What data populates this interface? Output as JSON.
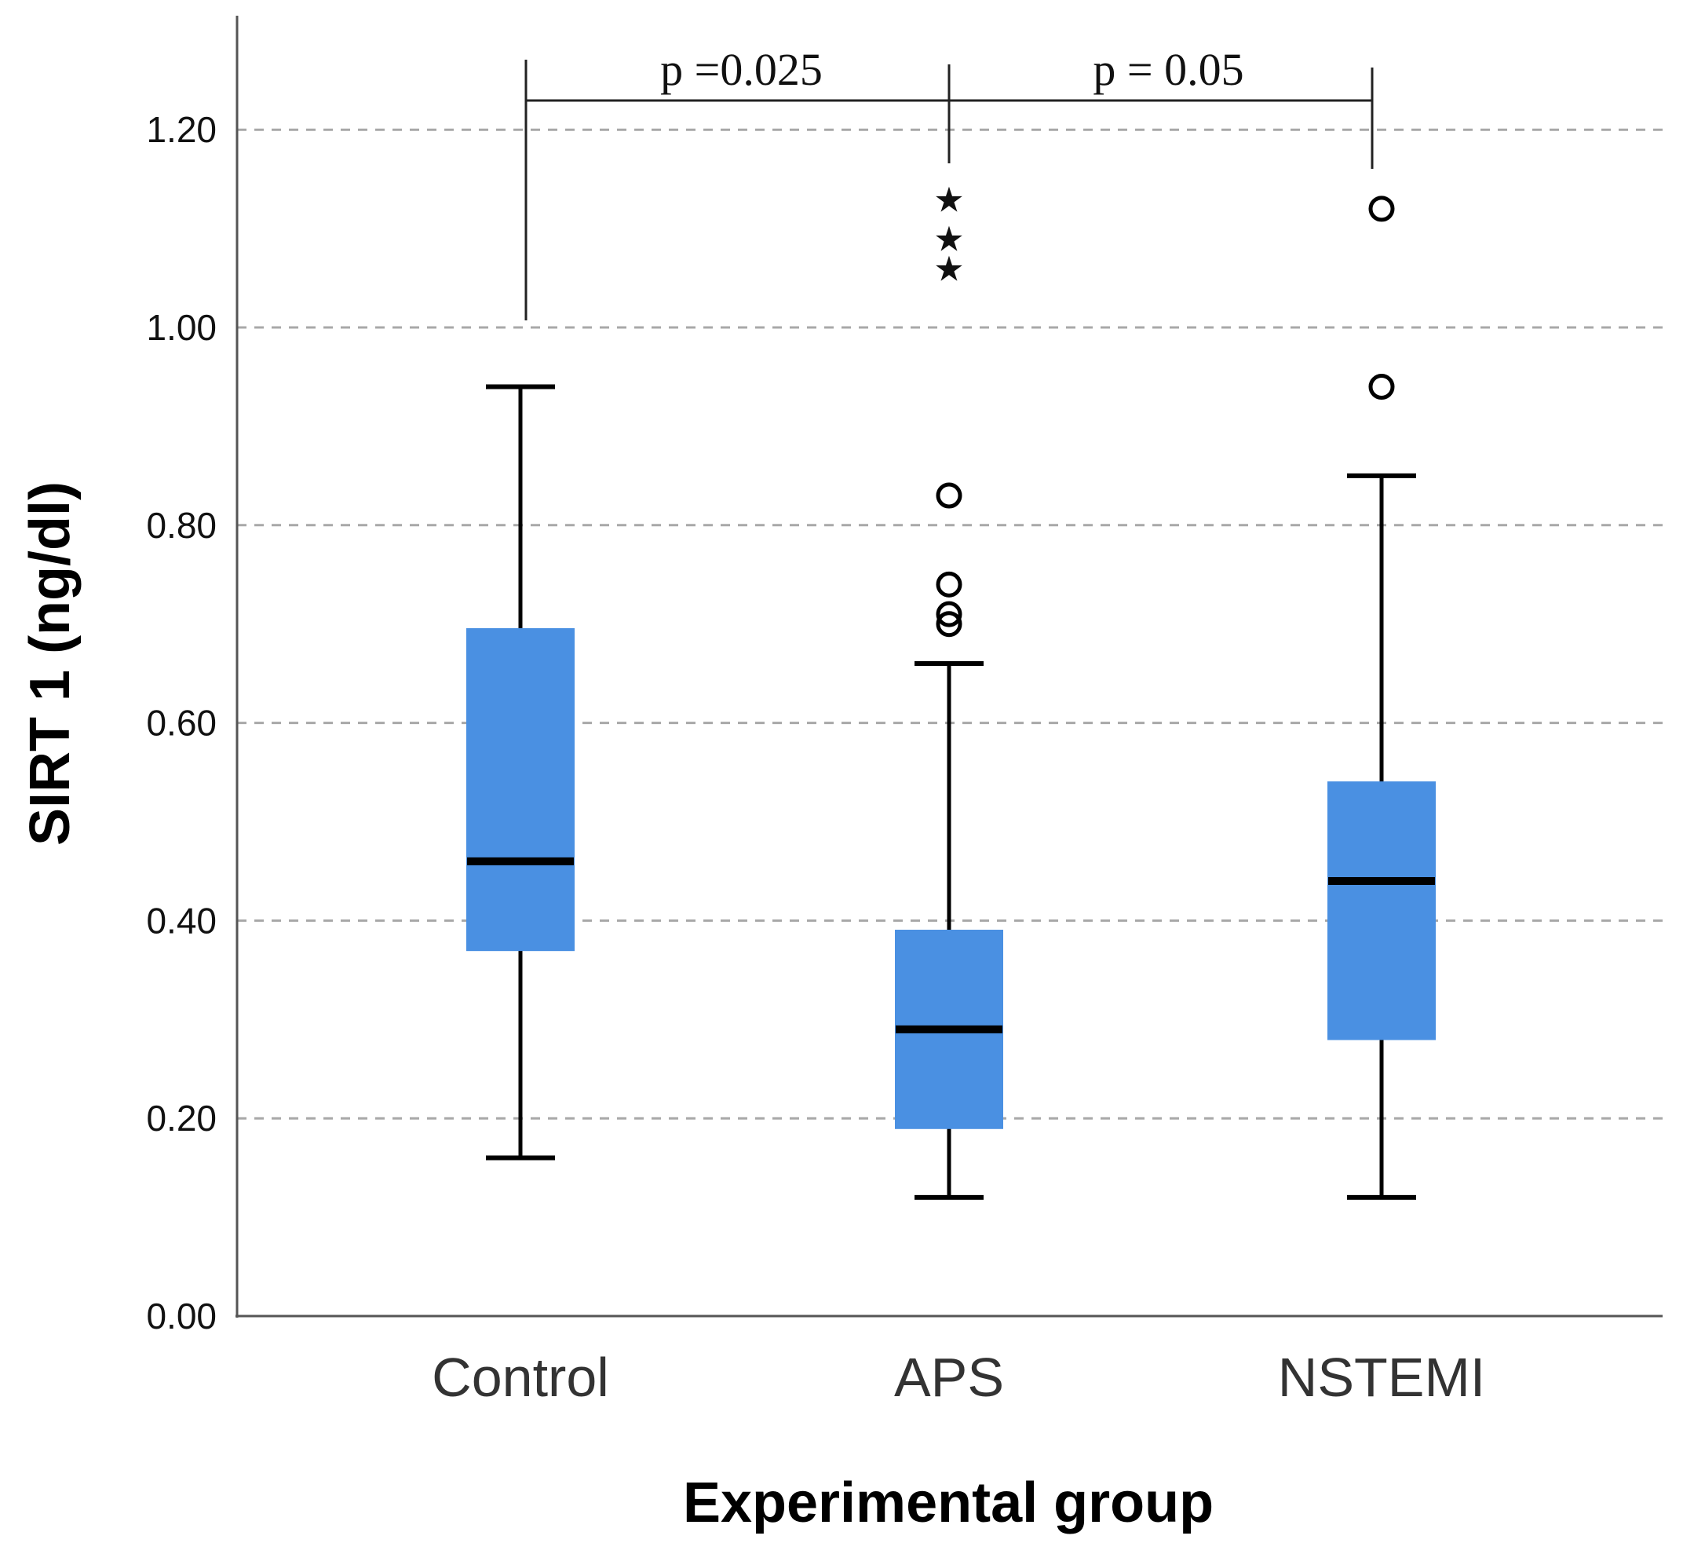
{
  "chart_data": {
    "type": "boxplot",
    "xlabel": "Experimental group",
    "ylabel": "SIRT 1 (ng/dl)",
    "ylim": [
      0,
      1.3
    ],
    "yticks": [
      0,
      0.2,
      0.4,
      0.6,
      0.8,
      1.0,
      1.2
    ],
    "ytick_labels": [
      "0.00",
      "0.20",
      "0.40",
      "0.60",
      "0.80",
      "1.00",
      "1.20"
    ],
    "grid": "horizontal dashed",
    "box_color": "#4a90e2",
    "categories": [
      "Control",
      "APS",
      "NSTEMI"
    ],
    "boxes": [
      {
        "category": "Control",
        "whisker_low": 0.16,
        "q1": 0.37,
        "median": 0.46,
        "q3": 0.695,
        "whisker_high": 0.94,
        "outliers": [],
        "extremes": []
      },
      {
        "category": "APS",
        "whisker_low": 0.12,
        "q1": 0.19,
        "median": 0.29,
        "q3": 0.39,
        "whisker_high": 0.66,
        "outliers": [
          0.83,
          0.74,
          0.71,
          0.7
        ],
        "extremes": [
          1.13,
          1.09,
          1.06
        ]
      },
      {
        "category": "NSTEMI",
        "whisker_low": 0.12,
        "q1": 0.28,
        "median": 0.44,
        "q3": 0.54,
        "whisker_high": 0.85,
        "outliers": [
          1.12,
          0.94
        ],
        "extremes": []
      }
    ],
    "significance": [
      {
        "groups": [
          "Control",
          "APS"
        ],
        "label": "p =0.025"
      },
      {
        "groups": [
          "APS",
          "NSTEMI"
        ],
        "label": "p = 0.05"
      }
    ]
  }
}
